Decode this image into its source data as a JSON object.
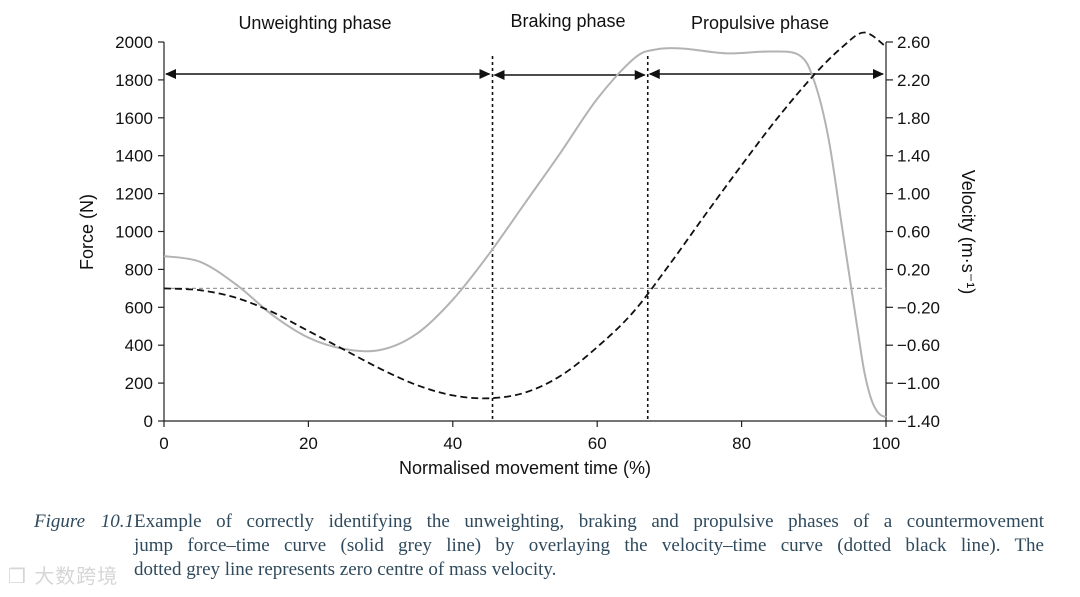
{
  "chart_data": {
    "type": "line",
    "title": "",
    "xlabel": "Normalised movement time (%)",
    "ylabel": "Force (N)",
    "y2label": "Velocity (m·s⁻¹)",
    "xlim": [
      0,
      100
    ],
    "ylim": [
      0,
      2000
    ],
    "y2lim": [
      -1.4,
      2.6
    ],
    "x_ticks": [
      "0",
      "20",
      "40",
      "60",
      "80",
      "100"
    ],
    "y_ticks": [
      "0",
      "200",
      "400",
      "600",
      "800",
      "1000",
      "1200",
      "1400",
      "1600",
      "1800",
      "2000"
    ],
    "y2_ticks": [
      "−1.40",
      "−1.00",
      "−0.60",
      "−0.20",
      "0.20",
      "0.60",
      "1.00",
      "1.40",
      "1.80",
      "2.20",
      "2.60"
    ],
    "series": [
      {
        "name": "Force",
        "style": "solid grey",
        "color": "#b3b3b3",
        "x": [
          0,
          5,
          10,
          15,
          20,
          25,
          30,
          35,
          40,
          45,
          50,
          55,
          60,
          65,
          68,
          72,
          78,
          84,
          88,
          90,
          92,
          94,
          96,
          97,
          98,
          99,
          100
        ],
        "values": [
          870,
          840,
          720,
          560,
          440,
          380,
          375,
          460,
          640,
          880,
          1150,
          1420,
          1700,
          1910,
          1960,
          1965,
          1940,
          1950,
          1930,
          1800,
          1500,
          1000,
          500,
          260,
          110,
          40,
          20
        ]
      },
      {
        "name": "Velocity",
        "style": "dashed black",
        "color": "#111111",
        "x": [
          0,
          5,
          10,
          15,
          20,
          25,
          30,
          35,
          40,
          45,
          50,
          55,
          60,
          65,
          70,
          75,
          80,
          85,
          90,
          94,
          97,
          100
        ],
        "values": [
          0,
          -0.02,
          -0.1,
          -0.25,
          -0.45,
          -0.65,
          -0.85,
          -1.02,
          -1.13,
          -1.16,
          -1.1,
          -0.92,
          -0.62,
          -0.25,
          0.25,
          0.78,
          1.3,
          1.8,
          2.25,
          2.55,
          2.7,
          2.55
        ]
      }
    ],
    "reference_lines": [
      {
        "name": "zero velocity",
        "axis": "y2",
        "value": 0,
        "style": "dotted grey"
      },
      {
        "name": "unweighting/braking boundary",
        "axis": "x",
        "value": 45.5,
        "style": "dotted black"
      },
      {
        "name": "braking/propulsive boundary",
        "axis": "x",
        "value": 67,
        "style": "dotted black"
      }
    ],
    "phases": [
      {
        "label": "Unweighting phase",
        "start": 0,
        "end": 45.5
      },
      {
        "label": "Braking phase",
        "start": 45.5,
        "end": 67
      },
      {
        "label": "Propulsive phase",
        "start": 67,
        "end": 100
      }
    ]
  },
  "caption": {
    "figure_label": "Figure 10.1",
    "line1": "Example of correctly identifying the unweighting, braking and propulsive phases of a countermovement",
    "line2": "jump force–time curve (solid grey line) by overlaying the velocity–time curve (dotted black line). The",
    "line3": "dotted grey line represents zero centre of mass velocity."
  },
  "watermark": "大数跨境"
}
